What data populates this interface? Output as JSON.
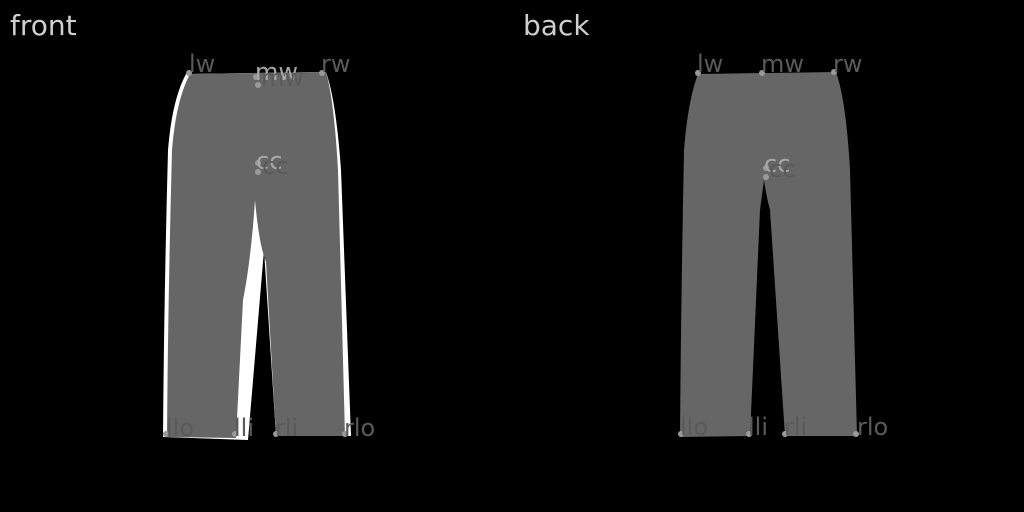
{
  "views": {
    "front": {
      "label": "front",
      "silhouette_color": "#666666",
      "outline_color": "#ffffff",
      "keypoints": {
        "lw": "lw",
        "mw": "mw",
        "rw": "rw",
        "cc": "cc",
        "llo": "llo",
        "lli": "lli",
        "rli": "rli",
        "rlo": "rlo"
      }
    },
    "back": {
      "label": "back",
      "silhouette_color": "#666666",
      "keypoints": {
        "lw": "lw",
        "mw": "mw",
        "rw": "rw",
        "cc": "cc",
        "llo": "llo",
        "lli": "lli",
        "rli": "rli",
        "rlo": "rlo"
      }
    }
  }
}
